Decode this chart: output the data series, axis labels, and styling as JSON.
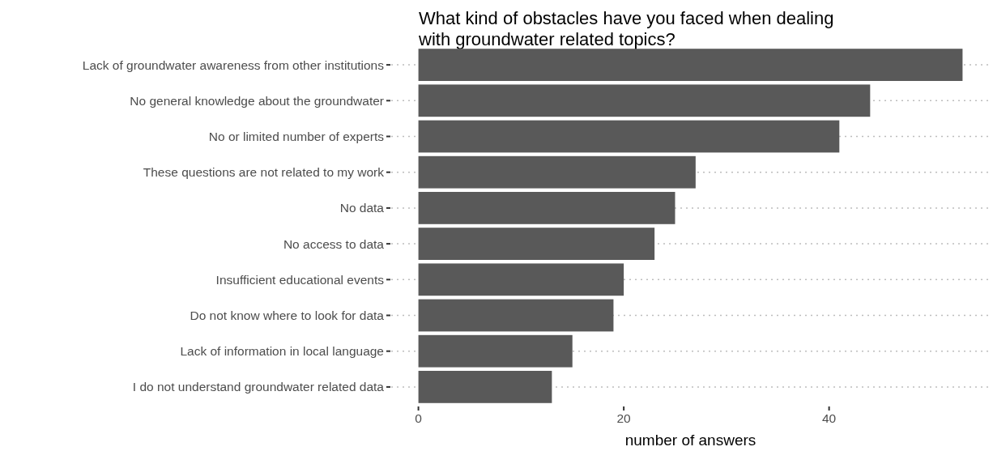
{
  "chart_data": {
    "type": "bar",
    "orientation": "horizontal",
    "title": "What kind of obstacles have you faced when dealing\nwith groundwater related topics?",
    "xlabel": "number of answers",
    "categories": [
      "Lack of groundwater awareness from other institutions",
      "No general knowledge about the groundwater",
      "No or limited number of experts",
      "These questions are not related to my work",
      "No data",
      "No access to data",
      "Insufficient educational events",
      "Do not know where to look for data",
      "Lack of information in local language",
      "I do not understand groundwater related data"
    ],
    "values": [
      53,
      44,
      41,
      27,
      25,
      23,
      20,
      19,
      15,
      13
    ],
    "color": "#595959",
    "xlim": [
      -2.65,
      55.65
    ],
    "xticks": [
      0,
      20,
      40
    ],
    "grid": "y"
  }
}
